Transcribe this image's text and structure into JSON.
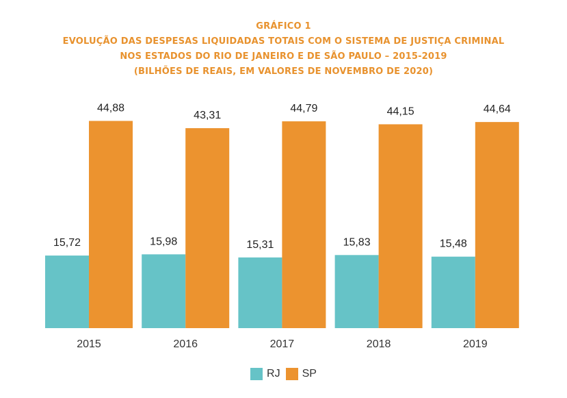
{
  "header": {
    "label": "GRÁFICO 1",
    "title_line1": "EVOLUÇÃO DAS DESPESAS LIQUIDADAS TOTAIS COM O SISTEMA DE JUSTIÇA CRIMINAL",
    "title_line2": "NOS ESTADOS DO RIO DE JANEIRO E DE SÃO PAULO – 2015-2019",
    "title_line3": "(BILHÕES DE REAIS, EM VALORES DE NOVEMBRO DE 2020)"
  },
  "colors": {
    "title": "#e8922e",
    "rj": "#66c3c7",
    "sp": "#ec932f",
    "text": "#222222"
  },
  "chart_data": {
    "type": "bar",
    "categories": [
      "2015",
      "2016",
      "2017",
      "2018",
      "2019"
    ],
    "series": [
      {
        "name": "RJ",
        "values": [
          15.72,
          15.98,
          15.31,
          15.83,
          15.48
        ],
        "labels": [
          "15,72",
          "15,98",
          "15,31",
          "15,83",
          "15,48"
        ]
      },
      {
        "name": "SP",
        "values": [
          44.88,
          43.31,
          44.79,
          44.15,
          44.64
        ],
        "labels": [
          "44,88",
          "43,31",
          "44,79",
          "44,15",
          "44,64"
        ]
      }
    ],
    "ylim": [
      0,
      50
    ],
    "grid": false,
    "legend_position": "bottom"
  }
}
